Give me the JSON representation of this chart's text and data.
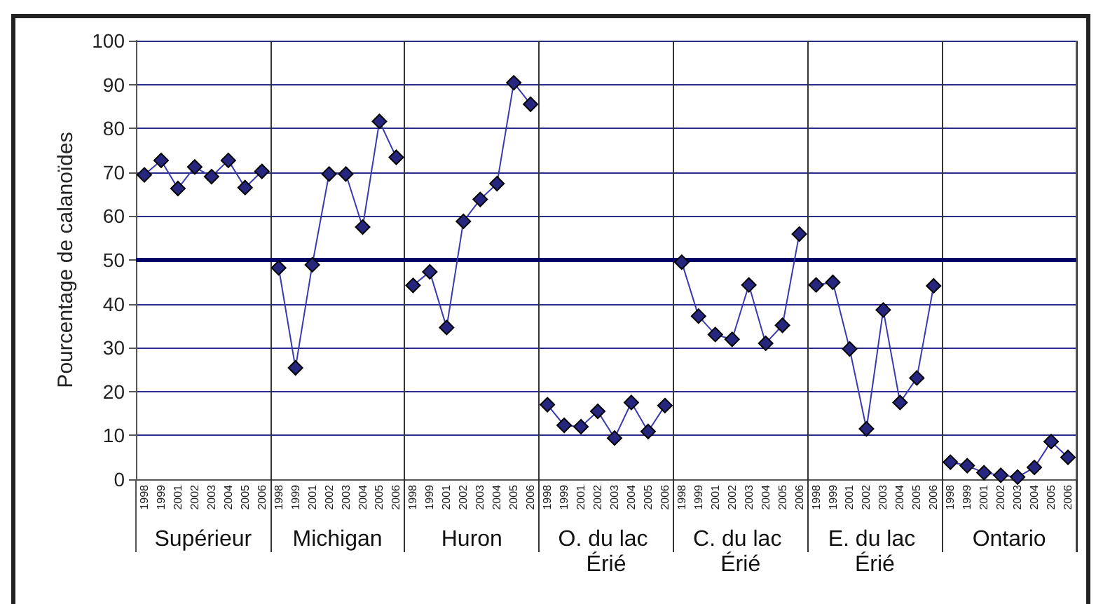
{
  "chart_data": {
    "type": "line",
    "ylabel": "Pourcentage de calanoïdes",
    "categories": [
      "1998",
      "1999",
      "2001",
      "2002",
      "2003",
      "2004",
      "2005",
      "2006",
      "1998",
      "1999",
      "2001",
      "2002",
      "2003",
      "2004",
      "2005",
      "2006",
      "1998",
      "1999",
      "2001",
      "2002",
      "2003",
      "2004",
      "2005",
      "2006",
      "1998",
      "1999",
      "2001",
      "2002",
      "2003",
      "2004",
      "2005",
      "2006",
      "1998",
      "1999",
      "2001",
      "2002",
      "2003",
      "2004",
      "2005",
      "2006",
      "1998",
      "1999",
      "2001",
      "2002",
      "2003",
      "2004",
      "2005",
      "2006",
      "1998",
      "1999",
      "2001",
      "2002",
      "2003",
      "2004",
      "2005",
      "2006"
    ],
    "series": [
      {
        "color": "#26267f",
        "values": [
          69.4,
          72.7,
          66.3,
          71.2,
          69,
          72.7,
          66.5,
          70.2,
          null,
          null,
          null,
          null,
          null,
          null,
          null,
          null,
          null,
          null,
          null,
          null,
          null,
          null,
          null,
          null,
          null,
          null,
          null,
          null,
          null,
          null,
          null,
          null,
          null,
          null,
          null,
          null,
          null,
          null,
          null,
          null,
          null,
          null,
          null,
          null,
          null,
          null,
          null,
          null,
          null,
          null,
          null,
          null,
          null,
          null,
          null,
          null
        ]
      },
      {
        "color": "#26267f",
        "values": [
          null,
          null,
          null,
          null,
          null,
          null,
          null,
          null,
          48.2,
          25.4,
          48.9,
          69.6,
          69.6,
          57.5,
          81.6,
          73.4,
          null,
          null,
          null,
          null,
          null,
          null,
          null,
          null,
          null,
          null,
          null,
          null,
          null,
          null,
          null,
          null,
          null,
          null,
          null,
          null,
          null,
          null,
          null,
          null,
          null,
          null,
          null,
          null,
          null,
          null,
          null,
          null,
          null,
          null,
          null,
          null,
          null,
          null,
          null,
          null
        ]
      },
      {
        "color": "#26267f",
        "values": [
          null,
          null,
          null,
          null,
          null,
          null,
          null,
          null,
          null,
          null,
          null,
          null,
          null,
          null,
          null,
          null,
          44.2,
          47.3,
          34.6,
          58.8,
          63.8,
          67.4,
          90.4,
          85.5,
          null,
          null,
          null,
          null,
          null,
          null,
          null,
          null,
          null,
          null,
          null,
          null,
          null,
          null,
          null,
          null,
          null,
          null,
          null,
          null,
          null,
          null,
          null,
          null,
          null,
          null,
          null,
          null,
          null,
          null,
          null,
          null
        ]
      },
      {
        "color": "#26267f",
        "values": [
          null,
          null,
          null,
          null,
          null,
          null,
          null,
          null,
          null,
          null,
          null,
          null,
          null,
          null,
          null,
          null,
          null,
          null,
          null,
          null,
          null,
          null,
          null,
          null,
          17,
          12.3,
          12,
          15.5,
          9.4,
          17.5,
          10.9,
          16.8,
          null,
          null,
          null,
          null,
          null,
          null,
          null,
          null,
          null,
          null,
          null,
          null,
          null,
          null,
          null,
          null,
          null,
          null,
          null,
          null,
          null,
          null,
          null,
          null
        ]
      },
      {
        "color": "#26267f",
        "values": [
          null,
          null,
          null,
          null,
          null,
          null,
          null,
          null,
          null,
          null,
          null,
          null,
          null,
          null,
          null,
          null,
          null,
          null,
          null,
          null,
          null,
          null,
          null,
          null,
          null,
          null,
          null,
          null,
          null,
          null,
          null,
          null,
          49.5,
          37.2,
          33,
          31.9,
          44.3,
          31,
          35.1,
          55.9,
          null,
          null,
          null,
          null,
          null,
          null,
          null,
          null,
          null,
          null,
          null,
          null,
          null,
          null,
          null,
          null
        ]
      },
      {
        "color": "#26267f",
        "values": [
          null,
          null,
          null,
          null,
          null,
          null,
          null,
          null,
          null,
          null,
          null,
          null,
          null,
          null,
          null,
          null,
          null,
          null,
          null,
          null,
          null,
          null,
          null,
          null,
          null,
          null,
          null,
          null,
          null,
          null,
          null,
          null,
          null,
          null,
          null,
          null,
          null,
          null,
          null,
          null,
          44.3,
          44.9,
          29.7,
          11.5,
          38.6,
          17.5,
          23.1,
          44.1,
          null,
          null,
          null,
          null,
          null,
          null,
          null,
          null
        ]
      },
      {
        "color": "#26267f",
        "values": [
          null,
          null,
          null,
          null,
          null,
          null,
          null,
          null,
          null,
          null,
          null,
          null,
          null,
          null,
          null,
          null,
          null,
          null,
          null,
          null,
          null,
          null,
          null,
          null,
          null,
          null,
          null,
          null,
          null,
          null,
          null,
          null,
          null,
          null,
          null,
          null,
          null,
          null,
          null,
          null,
          null,
          null,
          null,
          null,
          null,
          null,
          null,
          null,
          3.9,
          3.1,
          1.5,
          0.9,
          0.5,
          2.7,
          8.6,
          5
        ]
      }
    ],
    "annotations": [
      "Supérieur",
      "Michigan",
      "Huron",
      "O. du lac Érié",
      "C. du lac Érié",
      "E. du lac Érié",
      "Ontario"
    ],
    "ylim": [
      0,
      100
    ],
    "yticks": [
      0,
      10,
      20,
      30,
      40,
      50,
      60,
      70,
      80,
      90,
      100
    ],
    "ref_lines": [
      {
        "axis": "y",
        "value": 50,
        "color": "#000066"
      }
    ],
    "grid": "y",
    "marker": "diamond",
    "line_style": "solid"
  }
}
